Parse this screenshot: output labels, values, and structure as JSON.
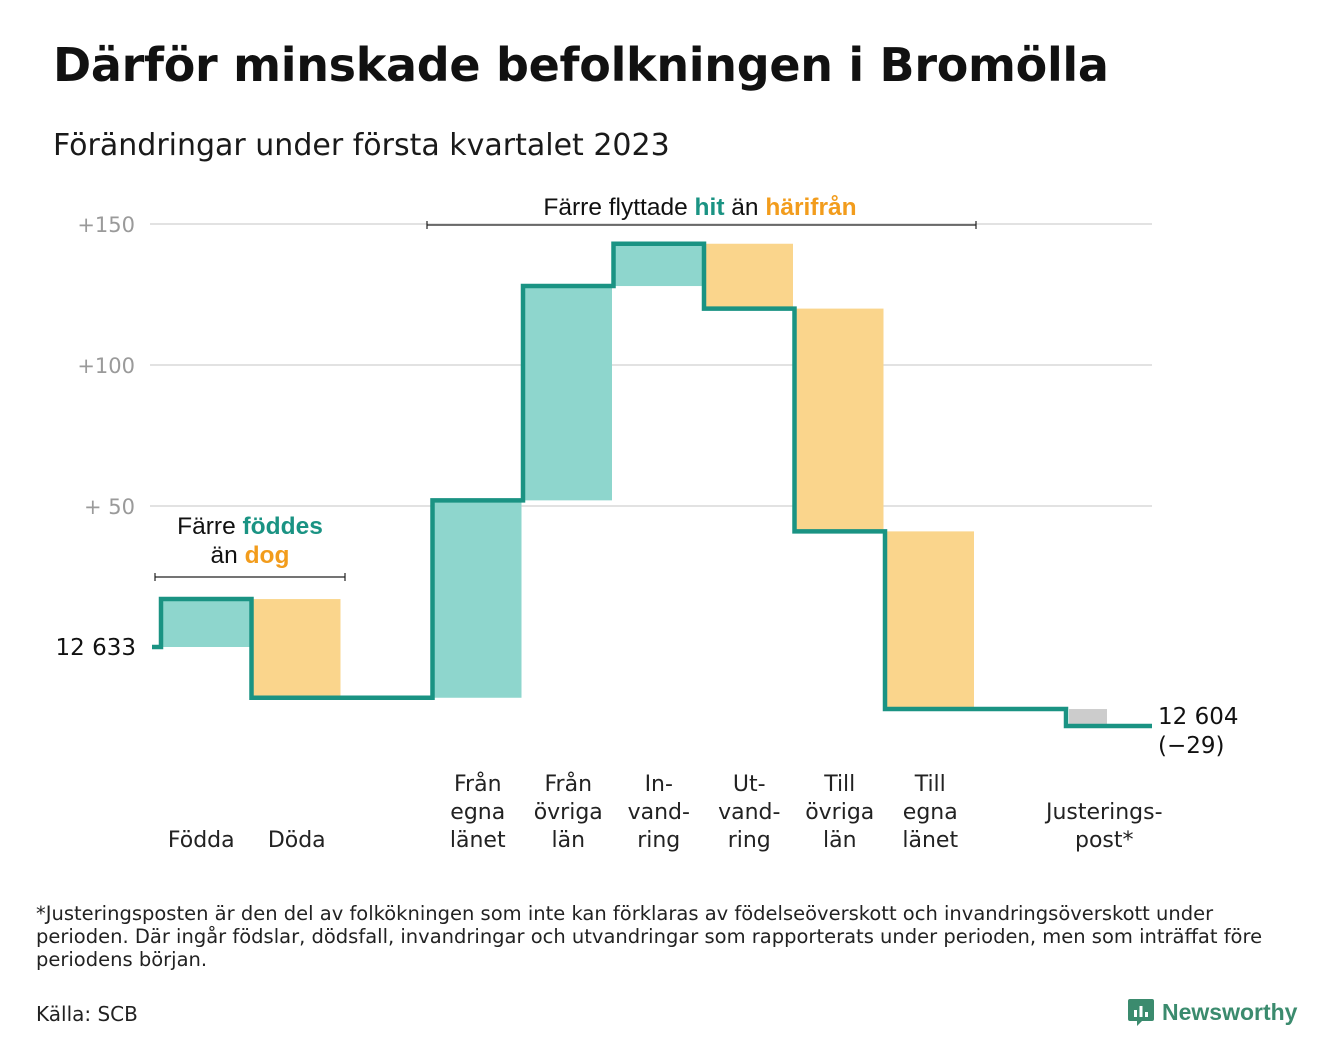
{
  "title": "Därför minskade befolkningen i Bromölla",
  "subtitle": "Förändringar under första kvartalet 2023",
  "colors": {
    "inflow": "#8ed6cd",
    "outflow": "#fad58c",
    "adjustment": "#cccccc",
    "line": "#1a9383",
    "teal_text": "#1a9383",
    "orange_text": "#f29c1c",
    "grid": "#e2e2e2",
    "axis_text": "#9a9a9a"
  },
  "chart_data": {
    "type": "waterfall",
    "start_value": 12633,
    "end_value": 12604,
    "start_label": "12 633",
    "end_label": "12 604",
    "end_change_label": "(−29)",
    "ylim": [
      -33,
      160
    ],
    "yticks": [
      {
        "value": 50,
        "label": "+ 50"
      },
      {
        "value": 100,
        "label": "+100"
      },
      {
        "value": 150,
        "label": "+150"
      }
    ],
    "steps": [
      {
        "key": "fodda",
        "label_lines": [
          "Födda"
        ],
        "change": 17,
        "kind": "in"
      },
      {
        "key": "doda",
        "label_lines": [
          "Döda"
        ],
        "change": -35,
        "kind": "out"
      },
      {
        "key": "gap",
        "label_lines": [],
        "change": 0,
        "kind": "gap"
      },
      {
        "key": "fran_egna",
        "label_lines": [
          "Från",
          "egna",
          "länet"
        ],
        "change": 70,
        "kind": "in"
      },
      {
        "key": "fran_ovriga",
        "label_lines": [
          "Från",
          "övriga",
          "län"
        ],
        "change": 76,
        "kind": "in"
      },
      {
        "key": "invandring",
        "label_lines": [
          "In-",
          "vand-",
          "ring"
        ],
        "change": 15,
        "kind": "in"
      },
      {
        "key": "utvandring",
        "label_lines": [
          "Ut-",
          "vand-",
          "ring"
        ],
        "change": -23,
        "kind": "out"
      },
      {
        "key": "till_ovriga",
        "label_lines": [
          "Till",
          "övriga",
          "län"
        ],
        "change": -79,
        "kind": "out"
      },
      {
        "key": "till_egna",
        "label_lines": [
          "Till",
          "egna",
          "länet"
        ],
        "change": -63,
        "kind": "out"
      },
      {
        "key": "gap2",
        "label_lines": [],
        "change": 0,
        "kind": "gap"
      },
      {
        "key": "justering",
        "label_lines": [
          "Justerings-",
          "post*"
        ],
        "change": -6,
        "kind": "adjustment"
      }
    ],
    "annotations": [
      {
        "key": "birth",
        "lines": [
          [
            {
              "text": "Färre ",
              "color": "default"
            },
            {
              "text": "föddes",
              "color": "teal"
            }
          ],
          [
            {
              "text": "än ",
              "color": "default"
            },
            {
              "text": "dog",
              "color": "orange"
            }
          ]
        ]
      },
      {
        "key": "move",
        "lines": [
          [
            {
              "text": "Färre flyttade ",
              "color": "default"
            },
            {
              "text": "hit",
              "color": "teal"
            },
            {
              "text": " än ",
              "color": "default"
            },
            {
              "text": "härifrån",
              "color": "orange"
            }
          ]
        ]
      }
    ]
  },
  "footnote": "*Justeringsposten är den del av folkökningen som inte kan förklaras av födelseöverskott och invandringsöverskott under perioden. Där ingår födslar, dödsfall, invandringar och utvandringar som rapporterats under perioden, men som inträffat före periodens början.",
  "source": "Källa: SCB",
  "brand": {
    "name": "Newsworthy",
    "icon": "newsworthy-logo-icon"
  }
}
